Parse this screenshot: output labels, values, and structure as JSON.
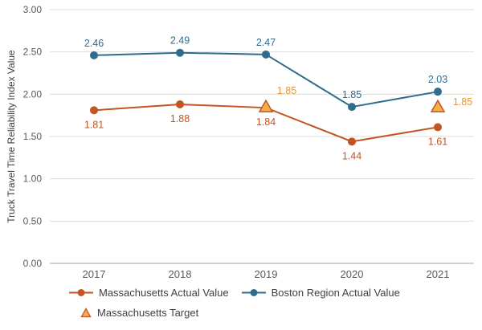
{
  "chart_data": {
    "type": "line",
    "title": "",
    "ylabel": "Truck Travel Time Reliability Index Value",
    "xlabel": "",
    "categories": [
      "2017",
      "2018",
      "2019",
      "2020",
      "2021"
    ],
    "ylim": [
      0,
      3
    ],
    "ytick_step": 0.5,
    "ytick_labels": [
      "0.00",
      "0.50",
      "1.00",
      "1.50",
      "2.00",
      "2.50",
      "3.00"
    ],
    "grid": true,
    "legend_position": "bottom",
    "colors": {
      "grid": "#DCDCDC",
      "axis": "#A6A6A6",
      "tick_text": "#595959",
      "legend_text": "#404040"
    },
    "series": [
      {
        "name": "Massachusetts Actual Value",
        "marker": "circle",
        "color": "#C25522",
        "values": [
          1.81,
          1.88,
          1.84,
          1.44,
          1.61
        ],
        "labels": [
          "1.81",
          "1.88",
          "1.84",
          "1.44",
          "1.61"
        ],
        "label_position": "below"
      },
      {
        "name": "Boston Region Actual Value",
        "marker": "circle",
        "color": "#2E6D8E",
        "values": [
          2.46,
          2.49,
          2.47,
          1.85,
          2.03
        ],
        "labels": [
          "2.46",
          "2.49",
          "2.47",
          "1.85",
          "2.03"
        ],
        "label_position": "above"
      },
      {
        "name": "Massachusetts Target",
        "marker": "triangle",
        "color": "#C25522",
        "marker_fill": "#F5AE4A",
        "label_color": "#ED9430",
        "x_categories": [
          "2019",
          "2021"
        ],
        "values": [
          1.85,
          1.85
        ],
        "labels": [
          "1.85",
          "1.85"
        ],
        "label_positions": [
          "above-right",
          "right"
        ]
      }
    ]
  }
}
